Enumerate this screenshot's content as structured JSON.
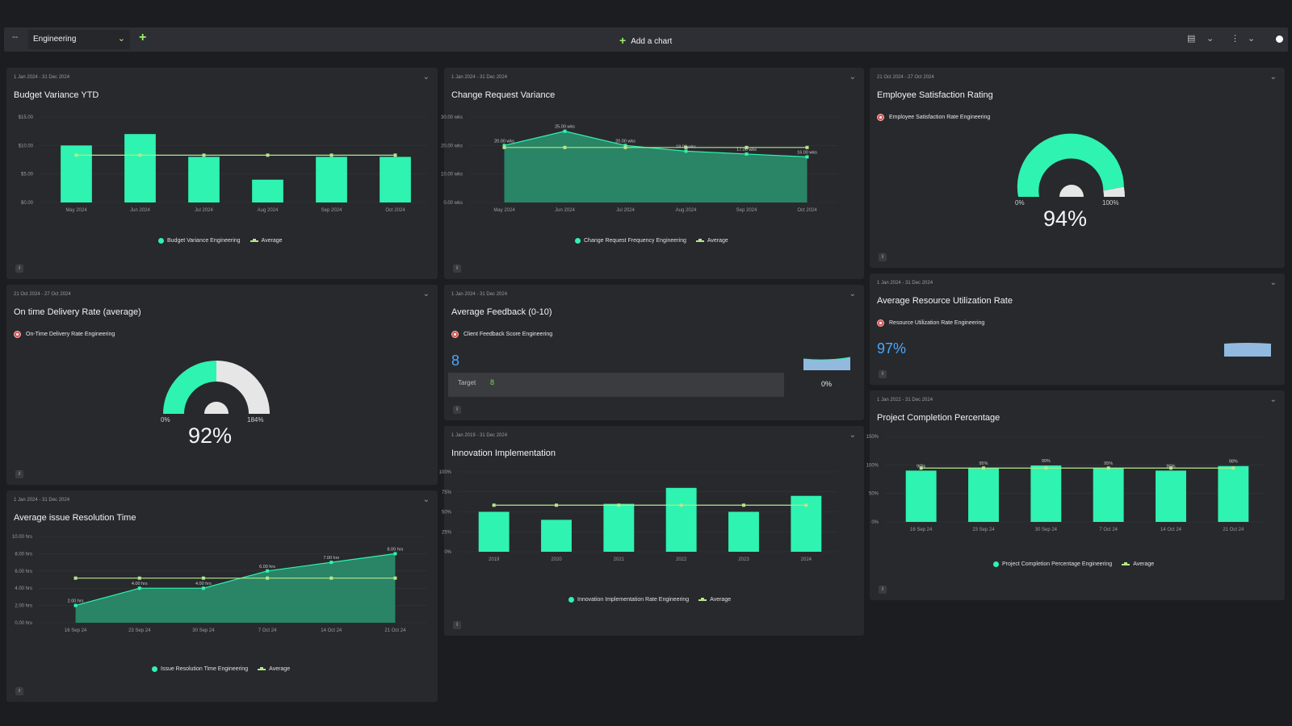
{
  "toolbar": {
    "collapse_glyph": "--",
    "dashboard_name": "Engineering",
    "add_chart_label": "Add a chart"
  },
  "colors": {
    "background": "#1c1d20",
    "card": "#27292d",
    "bar": "#2ff3b0",
    "area": "#2a8f6b",
    "average": "#b8e68c",
    "kpi": "#4aa8ff"
  },
  "icons": [
    "collapse-icon",
    "chevron-down-icon",
    "plus-icon",
    "document-icon",
    "kebab-menu-icon",
    "target-icon",
    "info-icon"
  ],
  "cards": {
    "budget": {
      "date_range": "1 Jan 2024 - 31 Dec 2024",
      "title": "Budget Variance YTD",
      "legend_series": "Budget Variance Engineering",
      "legend_avg": "Average"
    },
    "change_request": {
      "date_range": "1 Jan 2024 - 31 Dec 2024",
      "title": "Change Request Variance",
      "legend_series": "Change Request Frequency Engineering",
      "legend_avg": "Average"
    },
    "employee_satisfaction": {
      "date_range": "21 Oct 2024 - 27 Oct 2024",
      "title": "Employee Satisfaction Rating",
      "metric": "Employee Satisfaction Rate Engineering",
      "gauge_min": "0%",
      "gauge_max": "100%",
      "value_text": "94%",
      "value": 94,
      "max": 100
    },
    "on_time": {
      "date_range": "21 Oct 2024 - 27 Oct 2024",
      "title": "On time Delivery Rate (average)",
      "metric": "On-Time Delivery Rate Engineering",
      "gauge_min": "0%",
      "gauge_max": "184%",
      "value_text": "92%",
      "value": 92,
      "max": 184
    },
    "avg_feedback": {
      "date_range": "1 Jan 2024 - 31 Dec 2024",
      "title": "Average Feedback (0-10)",
      "metric": "Client Feedback Score Engineering",
      "value": "8",
      "target_label": "Target",
      "target_value": "8",
      "change": "0%"
    },
    "resource_util": {
      "date_range": "1 Jan 2024 - 31 Dec 2024",
      "title": "Average Resource Utilization Rate",
      "metric": "Resource Utilization Rate Engineering",
      "value": "97%"
    },
    "resolution_time": {
      "date_range": "1 Jan 2024 - 31 Dec 2024",
      "title": "Average issue Resolution Time",
      "legend_series": "Issue Resolution Time Engineering",
      "legend_avg": "Average"
    },
    "innovation": {
      "date_range": "1 Jan 2019 - 31 Dec 2024",
      "title": "Innovation Implementation",
      "legend_series": "Innovation Implementation Rate Engineering",
      "legend_avg": "Average"
    },
    "project_completion": {
      "date_range": "1 Jan 2022 - 31 Dec 2024",
      "title": "Project Completion Percentage",
      "legend_series": "Project Completion Percentage Engineering",
      "legend_avg": "Average"
    }
  },
  "chart_data": [
    {
      "id": "budget",
      "type": "bar",
      "categories": [
        "May 2024",
        "Jun 2024",
        "Jul 2024",
        "Aug 2024",
        "Sep 2024",
        "Oct 2024"
      ],
      "series": [
        {
          "name": "Budget Variance Engineering",
          "values": [
            10.0,
            12.0,
            8.0,
            4.0,
            8.0,
            8.0
          ]
        },
        {
          "name": "Average",
          "values": [
            8.3,
            8.3,
            8.3,
            8.3,
            8.3,
            8.3
          ]
        }
      ],
      "yticks": [
        "$0.00",
        "$5.00",
        "$10.00",
        "$15.00"
      ],
      "ylim": [
        0,
        15
      ]
    },
    {
      "id": "change_request",
      "type": "area",
      "categories": [
        "May 2024",
        "Jun 2024",
        "Jul 2024",
        "Aug 2024",
        "Sep 2024",
        "Oct 2024"
      ],
      "series": [
        {
          "name": "Change Request Frequency Engineering",
          "values": [
            20,
            25,
            20,
            18,
            17,
            16
          ]
        },
        {
          "name": "Average",
          "values": [
            19.3,
            19.3,
            19.3,
            19.3,
            19.3,
            19.3
          ]
        }
      ],
      "data_labels": [
        "20.00 wks",
        "25.00 wks",
        "20.00 wks",
        "18.00 wks",
        "17.00 wks",
        "16.00 wks"
      ],
      "yticks": [
        "0.00 wks",
        "10.00 wks",
        "20.00 wks",
        "30.00 wks"
      ],
      "ylim": [
        0,
        30
      ]
    },
    {
      "id": "resolution_time",
      "type": "area",
      "categories": [
        "16 Sep 24",
        "23 Sep 24",
        "30 Sep 24",
        "7 Oct 24",
        "14 Oct 24",
        "21 Oct 24"
      ],
      "series": [
        {
          "name": "Issue Resolution Time Engineering",
          "values": [
            2,
            4,
            4,
            6,
            7,
            8
          ]
        },
        {
          "name": "Average",
          "values": [
            5.17,
            5.17,
            5.17,
            5.17,
            5.17,
            5.17
          ]
        }
      ],
      "data_labels": [
        "2.00 hrs",
        "4.00 hrs",
        "4.00 hrs",
        "6.00 hrs",
        "7.00 hrs",
        "8.00 hrs"
      ],
      "yticks": [
        "0.00 hrs",
        "2.00 hrs",
        "4.00 hrs",
        "6.00 hrs",
        "8.00 hrs",
        "10.00 hrs"
      ],
      "ylim": [
        0,
        10
      ]
    },
    {
      "id": "innovation",
      "type": "bar",
      "categories": [
        "2019",
        "2020",
        "2021",
        "2022",
        "2023",
        "2024"
      ],
      "series": [
        {
          "name": "Innovation Implementation Rate Engineering",
          "values": [
            50,
            40,
            60,
            80,
            50,
            70
          ]
        },
        {
          "name": "Average",
          "values": [
            58.3,
            58.3,
            58.3,
            58.3,
            58.3,
            58.3
          ]
        }
      ],
      "yticks": [
        "0%",
        "25%",
        "50%",
        "75%",
        "100%"
      ],
      "ylim": [
        0,
        100
      ]
    },
    {
      "id": "project_completion",
      "type": "bar",
      "categories": [
        "16 Sep 24",
        "23 Sep 24",
        "30 Sep 24",
        "7 Oct 24",
        "14 Oct 24",
        "21 Oct 24"
      ],
      "series": [
        {
          "name": "Project Completion Percentage Engineering",
          "values": [
            90,
            95,
            99,
            95,
            90,
            98
          ]
        },
        {
          "name": "Average",
          "values": [
            94.5,
            94.5,
            94.5,
            94.5,
            94.5,
            94.5
          ]
        }
      ],
      "data_labels": [
        "90%",
        "95%",
        "99%",
        "95%",
        "90%",
        "98%"
      ],
      "yticks": [
        "0%",
        "50%",
        "100%",
        "150%"
      ],
      "ylim": [
        0,
        150
      ]
    }
  ]
}
